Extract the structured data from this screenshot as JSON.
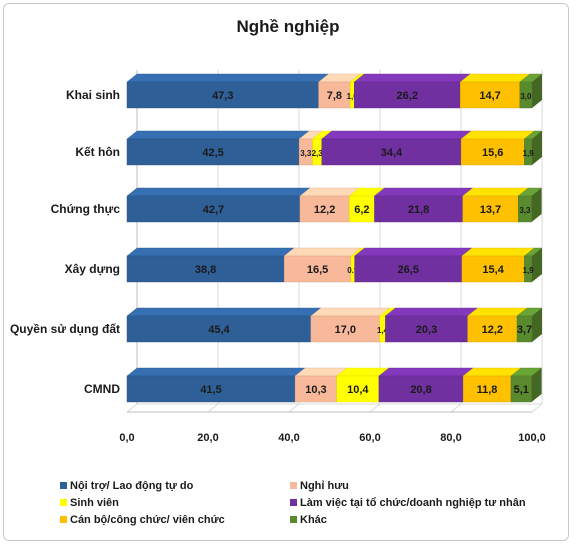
{
  "chart_data": {
    "type": "bar",
    "orientation": "horizontal",
    "stacked": true,
    "title": "Nghề nghiệp",
    "categories": [
      "Khai sinh",
      "Kết hôn",
      "Chứng thực",
      "Xây dựng",
      "Quyền sử dụng đất",
      "CMND"
    ],
    "series": [
      {
        "name": "Nội trợ/ Lao động tự do",
        "color": "#2e5f97",
        "values": [
          47.3,
          42.5,
          42.7,
          38.8,
          45.4,
          41.5
        ],
        "labels": [
          "47,3",
          "42,5",
          "42,7",
          "38,8",
          "45,4",
          "41,5"
        ]
      },
      {
        "name": "Nghỉ hưu",
        "color": "#f7b99a",
        "values": [
          7.8,
          3.3,
          12.2,
          16.5,
          17.0,
          10.3
        ],
        "labels": [
          "7,8",
          "3,3",
          "12,2",
          "16,5",
          "17,0",
          "10,3"
        ]
      },
      {
        "name": "Sinh viên",
        "color": "#ffff00",
        "values": [
          1.0,
          2.3,
          6.2,
          0.9,
          1.4,
          10.4
        ],
        "labels": [
          "1,0",
          "2,3",
          "6,2",
          "0.9",
          "1,4",
          "10,4"
        ]
      },
      {
        "name": "Làm việc tại tổ chức/doanh nghiệp tư nhân",
        "color": "#7030a0",
        "values": [
          26.2,
          34.4,
          21.8,
          26.5,
          20.3,
          20.8
        ],
        "labels": [
          "26,2",
          "34,4",
          "21,8",
          "26,5",
          "20,3",
          "20,8"
        ]
      },
      {
        "name": "Cán bộ/công chức/ viên chức",
        "color": "#ffc000",
        "values": [
          14.7,
          15.6,
          13.7,
          15.4,
          12.2,
          11.8
        ],
        "labels": [
          "14,7",
          "15,6",
          "13,7",
          "15,4",
          "12,2",
          "11,8"
        ]
      },
      {
        "name": "Khác",
        "color": "#5a8a2e",
        "values": [
          3.0,
          1.9,
          3.3,
          1.9,
          3.7,
          5.1
        ],
        "labels": [
          "3,0",
          "1,9",
          "3,3",
          "1,9",
          "3,7",
          "5,1"
        ]
      }
    ],
    "xlim": [
      0,
      100
    ],
    "xticks": [
      0,
      20,
      40,
      60,
      80,
      100
    ],
    "xtick_labels": [
      "0,0",
      "20,0",
      "40,0",
      "60,0",
      "80,0",
      "100,0"
    ],
    "grid": true,
    "legend_position": "bottom"
  }
}
